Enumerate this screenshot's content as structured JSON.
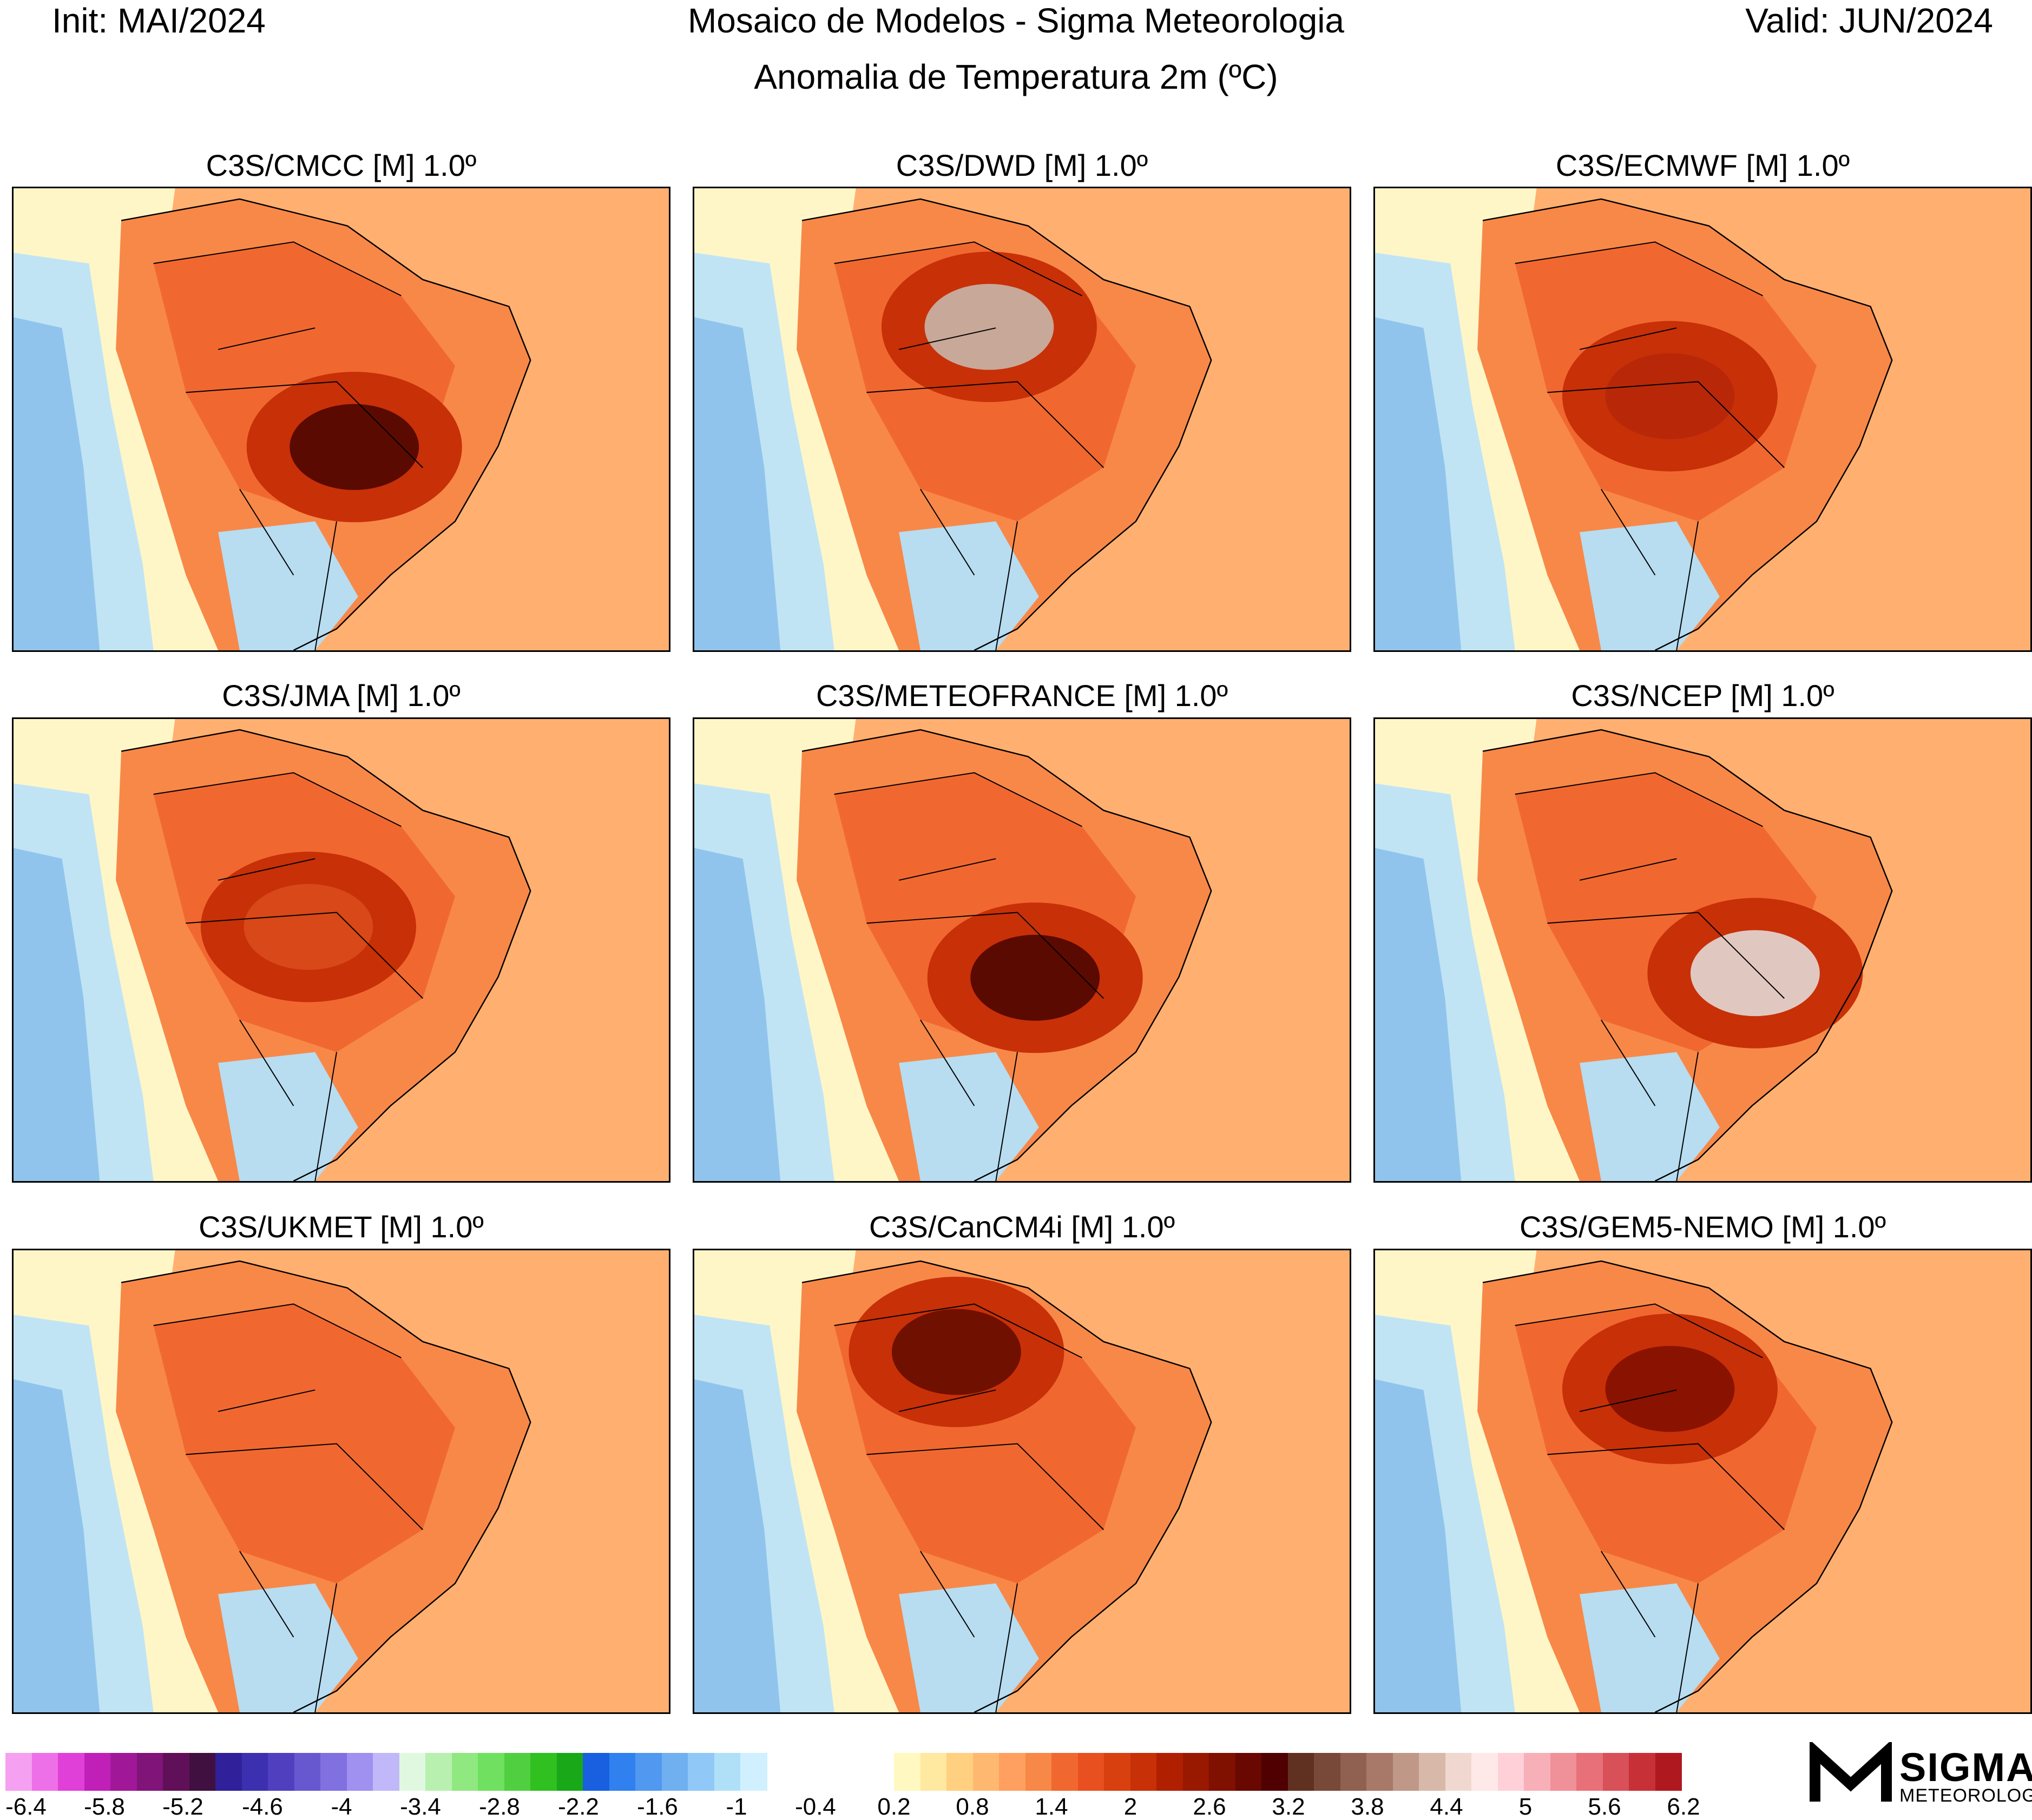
{
  "header": {
    "init": "Init: MAI/2024",
    "title": "Mosaico de Modelos - Sigma Meteorologia",
    "valid": "Valid: JUN/2024",
    "subtitle": "Anomalia de Temperatura 2m (ºC)"
  },
  "panels": [
    {
      "title": "C3S/CMCC [M] 1.0º",
      "peak": 4.0,
      "hotspot": "central-west"
    },
    {
      "title": "C3S/DWD [M] 1.0º",
      "peak": 4.6,
      "hotspot": "north-central"
    },
    {
      "title": "C3S/ECMWF [M] 1.0º",
      "peak": 2.8,
      "hotspot": "central"
    },
    {
      "title": "C3S/JMA [M] 1.0º",
      "peak": 2.2,
      "hotspot": "central"
    },
    {
      "title": "C3S/METEOFRANCE [M] 1.0º",
      "peak": 4.0,
      "hotspot": "central-west"
    },
    {
      "title": "C3S/NCEP [M] 1.0º",
      "peak": 4.8,
      "hotspot": "east-central"
    },
    {
      "title": "C3S/UKMET [M] 1.0º",
      "peak": 1.4,
      "hotspot": "none"
    },
    {
      "title": "C3S/CanCM4i [M] 1.0º",
      "peak": 3.8,
      "hotspot": "north"
    },
    {
      "title": "C3S/GEM5-NEMO [M] 1.0º",
      "peak": 3.4,
      "hotspot": "north-central"
    }
  ],
  "colorbar": {
    "neg_colors": [
      "#f5a0f0",
      "#ee70e8",
      "#e040d8",
      "#c020b8",
      "#a01898",
      "#801478",
      "#601058",
      "#401040",
      "#30209a",
      "#3c30b0",
      "#5040c0",
      "#6858d0",
      "#8070e0",
      "#a090f0",
      "#c0b8f8",
      "#e0f8e0",
      "#b8f0b0",
      "#90e880",
      "#70e060",
      "#50d040",
      "#30c020",
      "#18a818",
      "#1860e0",
      "#3080f0",
      "#5098f0",
      "#70b0f0",
      "#90c8f8",
      "#b0e0f8",
      "#d0f0ff"
    ],
    "pos_colors": [
      "#fff8c0",
      "#ffe8a0",
      "#ffd080",
      "#ffb870",
      "#ffa060",
      "#f88848",
      "#f06830",
      "#e85020",
      "#d84010",
      "#c83008",
      "#b02000",
      "#981800",
      "#801000",
      "#680800",
      "#500000",
      "#603020",
      "#784838",
      "#906050",
      "#a87868",
      "#c09888",
      "#d8b8a8",
      "#f0d8d0",
      "#ffe8e8",
      "#ffd0d8",
      "#f8b0b8",
      "#f09098",
      "#e87078",
      "#d85058",
      "#c83038",
      "#b01820"
    ],
    "labels": [
      "-6.4",
      "-5.8",
      "-5.2",
      "-4.6",
      "-4",
      "-3.4",
      "-2.8",
      "-2.2",
      "-1.6",
      "-1",
      "-0.4",
      "0.2",
      "0.8",
      "1.4",
      "2",
      "2.6",
      "3.2",
      "3.8",
      "4.4",
      "5",
      "5.6",
      "6.2"
    ]
  },
  "logo": {
    "word": "SIGMA",
    "sub": "METEOROLOGIA"
  }
}
